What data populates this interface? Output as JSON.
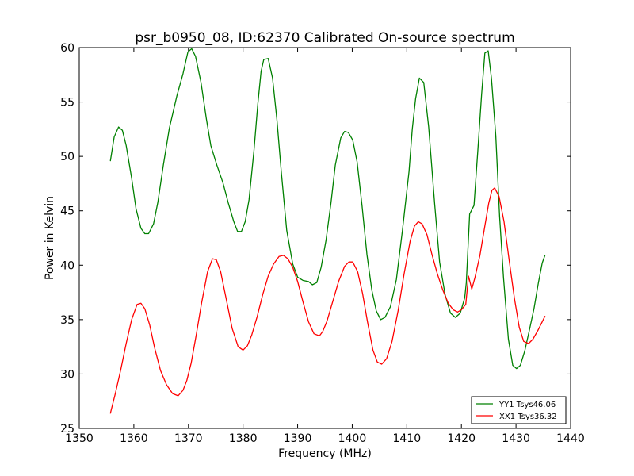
{
  "chart_data": {
    "type": "line",
    "title": "psr_b0950_08, ID:62370 Calibrated On-source spectrum",
    "xlabel": "Frequency (MHz)",
    "ylabel": "Power in Kelvin",
    "xlim": [
      1350,
      1440
    ],
    "ylim": [
      25,
      60
    ],
    "xticks": [
      1350,
      1360,
      1370,
      1380,
      1390,
      1400,
      1410,
      1420,
      1430,
      1440
    ],
    "yticks": [
      25,
      30,
      35,
      40,
      45,
      50,
      55,
      60
    ],
    "grid": false,
    "legend_position": "lower-right",
    "series": [
      {
        "name": "YY1 Tsys46.06",
        "color": "#008000",
        "x": [
          1355.7,
          1356.4,
          1357.2,
          1357.9,
          1358.6,
          1359.6,
          1360.4,
          1361.3,
          1362.0,
          1362.7,
          1363.6,
          1364.4,
          1365.4,
          1366.5,
          1367.9,
          1369.0,
          1369.9,
          1370.6,
          1371.3,
          1372.3,
          1373.3,
          1374.1,
          1375.2,
          1376.3,
          1377.3,
          1378.3,
          1379.0,
          1379.7,
          1380.4,
          1381.1,
          1382.0,
          1382.7,
          1383.3,
          1383.8,
          1384.6,
          1385.4,
          1386.2,
          1387.0,
          1388.0,
          1389.1,
          1390.0,
          1391.0,
          1392.0,
          1392.7,
          1393.5,
          1394.3,
          1395.2,
          1396.1,
          1396.9,
          1397.9,
          1398.6,
          1399.3,
          1400.1,
          1400.9,
          1401.8,
          1402.7,
          1403.6,
          1404.4,
          1405.2,
          1406.0,
          1407.0,
          1408.1,
          1409.2,
          1410.4,
          1411.0,
          1411.6,
          1412.3,
          1413.1,
          1414.0,
          1415.1,
          1416.0,
          1417.0,
          1418.0,
          1418.9,
          1419.8,
          1420.6,
          1420.9,
          1421.5,
          1422.3,
          1423.0,
          1423.7,
          1424.3,
          1424.9,
          1425.5,
          1426.3,
          1427.0,
          1427.7,
          1428.6,
          1429.4,
          1430.1,
          1430.8,
          1431.6,
          1432.4,
          1433.3,
          1434.1,
          1434.8,
          1435.3
        ],
        "y": [
          49.6,
          51.8,
          52.7,
          52.4,
          51.0,
          48.0,
          45.2,
          43.4,
          42.9,
          42.9,
          43.8,
          45.8,
          49.2,
          52.6,
          55.6,
          57.6,
          59.6,
          59.9,
          59.2,
          56.8,
          53.4,
          51.0,
          49.2,
          47.6,
          45.7,
          44.0,
          43.1,
          43.1,
          44.0,
          46.0,
          50.5,
          54.8,
          57.8,
          58.9,
          59.0,
          57.2,
          53.4,
          48.6,
          43.2,
          40.1,
          38.9,
          38.6,
          38.5,
          38.2,
          38.4,
          39.8,
          42.3,
          45.7,
          49.2,
          51.7,
          52.3,
          52.2,
          51.5,
          49.5,
          45.5,
          41.0,
          37.7,
          35.8,
          35.0,
          35.2,
          36.2,
          38.7,
          43.2,
          48.6,
          52.5,
          55.3,
          57.2,
          56.8,
          52.7,
          45.6,
          40.3,
          37.3,
          35.6,
          35.2,
          35.6,
          37.0,
          38.4,
          44.7,
          45.5,
          50.5,
          55.7,
          59.5,
          59.7,
          57.2,
          51.9,
          44.5,
          38.9,
          33.2,
          30.8,
          30.5,
          30.8,
          32.1,
          33.9,
          36.0,
          38.4,
          40.2,
          40.9
        ]
      },
      {
        "name": "XX1 Tsys36.32",
        "color": "#ff0000",
        "x": [
          1355.7,
          1356.6,
          1357.6,
          1358.6,
          1359.6,
          1360.6,
          1361.3,
          1362.0,
          1362.9,
          1363.8,
          1364.9,
          1366.0,
          1367.1,
          1368.1,
          1369.0,
          1369.7,
          1370.5,
          1371.4,
          1372.4,
          1373.5,
          1374.4,
          1375.1,
          1375.9,
          1376.8,
          1378.0,
          1379.1,
          1380.0,
          1380.8,
          1381.6,
          1382.6,
          1383.6,
          1384.6,
          1385.6,
          1386.6,
          1387.4,
          1388.2,
          1389.1,
          1390.0,
          1391.0,
          1392.0,
          1393.0,
          1394.0,
          1394.6,
          1395.4,
          1396.4,
          1397.5,
          1398.6,
          1399.4,
          1400.1,
          1401.0,
          1401.9,
          1402.8,
          1403.8,
          1404.6,
          1405.4,
          1406.3,
          1407.3,
          1408.4,
          1409.5,
          1410.6,
          1411.4,
          1412.1,
          1412.8,
          1413.7,
          1414.6,
          1415.6,
          1416.6,
          1417.6,
          1418.5,
          1419.3,
          1420.0,
          1420.8,
          1421.3,
          1421.9,
          1422.5,
          1423.4,
          1424.3,
          1425.0,
          1425.6,
          1426.1,
          1426.9,
          1427.8,
          1428.7,
          1429.7,
          1430.6,
          1431.4,
          1432.3,
          1433.1,
          1434.0,
          1434.8,
          1435.3
        ],
        "y": [
          26.4,
          28.2,
          30.4,
          32.8,
          35.0,
          36.4,
          36.5,
          36.0,
          34.5,
          32.4,
          30.3,
          29.0,
          28.2,
          28.0,
          28.5,
          29.4,
          31.0,
          33.5,
          36.5,
          39.4,
          40.6,
          40.5,
          39.4,
          37.2,
          34.2,
          32.5,
          32.2,
          32.6,
          33.6,
          35.3,
          37.3,
          39.0,
          40.1,
          40.8,
          40.9,
          40.6,
          39.8,
          38.5,
          36.6,
          34.8,
          33.7,
          33.5,
          33.9,
          34.9,
          36.6,
          38.5,
          39.9,
          40.3,
          40.3,
          39.4,
          37.4,
          34.8,
          32.2,
          31.1,
          30.9,
          31.4,
          33.0,
          35.8,
          39.2,
          42.2,
          43.6,
          44.0,
          43.8,
          42.8,
          41.0,
          39.2,
          37.7,
          36.5,
          35.9,
          35.7,
          35.9,
          36.4,
          39.0,
          37.8,
          38.9,
          40.9,
          43.6,
          45.7,
          46.9,
          47.1,
          46.3,
          44.0,
          40.6,
          37.0,
          34.3,
          33.0,
          32.8,
          33.2,
          34.0,
          34.8,
          35.3
        ]
      }
    ]
  }
}
